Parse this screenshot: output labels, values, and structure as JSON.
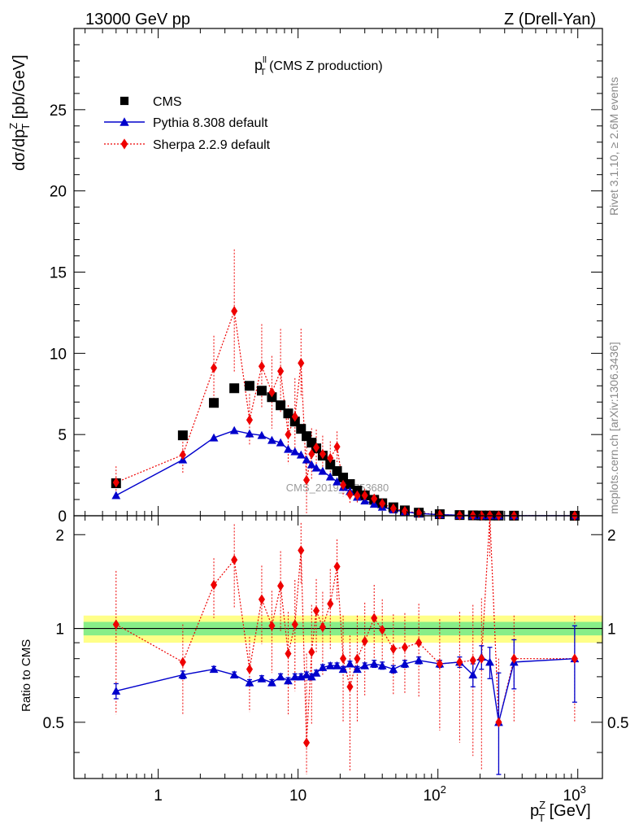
{
  "header": {
    "left": "13000 GeV pp",
    "right": "Z (Drell-Yan)"
  },
  "side_labels": {
    "rivet": "Rivet 3.1.10, ≥ 2.6M events",
    "mcplots": "mcplots.cern.ch [arXiv:1306.3436]"
  },
  "watermark": "CMS_2019_I1753680",
  "plot_title": {
    "main": "p",
    "sup": "ll",
    "sub": "T",
    "rest": " (CMS Z production)"
  },
  "axis_labels": {
    "ylabel_top": "dσ/dp",
    "ylabel_top_sup": "Z",
    "ylabel_top_sub": "T",
    "ylabel_top_rest": " [pb/GeV]",
    "ylabel_bottom": "Ratio to CMS",
    "xlabel": "p",
    "xlabel_sup": "Z",
    "xlabel_sub": "T",
    "xlabel_rest": " [GeV]"
  },
  "legend": [
    {
      "label": "CMS",
      "color": "#000000",
      "marker": "square",
      "line": "none"
    },
    {
      "label": "Pythia 8.308 default",
      "color": "#0000cc",
      "marker": "triangle",
      "line": "solid"
    },
    {
      "label": "Sherpa 2.2.9 default",
      "color": "#ee0000",
      "marker": "diamond",
      "line": "dotted"
    }
  ],
  "chart_data": {
    "type": "scatter",
    "x_scale": "log",
    "xlim": [
      0.25,
      1500
    ],
    "top_panel": {
      "ylim": [
        0,
        30
      ],
      "yticks": [
        0,
        5,
        10,
        15,
        20,
        25
      ],
      "ytick_labels": [
        "0",
        "5",
        "10",
        "15",
        "20",
        "25"
      ]
    },
    "ratio_panel": {
      "ylim": [
        0.33,
        2.3
      ],
      "yticks": [
        0.5,
        1,
        2
      ],
      "ytick_labels": [
        "0.5",
        "1",
        "2"
      ]
    },
    "xtick_labels": [
      {
        "value": 1,
        "base": "1",
        "exp": ""
      },
      {
        "value": 10,
        "base": "10",
        "exp": ""
      },
      {
        "value": 100,
        "base": "10",
        "exp": "2"
      },
      {
        "value": 1000,
        "base": "10",
        "exp": "3"
      }
    ],
    "x": [
      0.5,
      1.5,
      2.5,
      3.5,
      4.5,
      5.5,
      6.5,
      7.5,
      8.5,
      9.5,
      10.5,
      11.5,
      12.5,
      13.5,
      15,
      17,
      19,
      21,
      23.5,
      26.5,
      30,
      35,
      40,
      48,
      58,
      73,
      103,
      143,
      178,
      205,
      235,
      272,
      350,
      950
    ],
    "series": [
      {
        "name": "CMS",
        "color": "#000000",
        "values": [
          2.0,
          4.95,
          6.95,
          7.85,
          8.0,
          7.7,
          7.3,
          6.8,
          6.3,
          5.8,
          5.35,
          4.9,
          4.5,
          4.15,
          3.7,
          3.15,
          2.75,
          2.35,
          1.95,
          1.55,
          1.25,
          0.98,
          0.77,
          0.52,
          0.33,
          0.19,
          0.095,
          0.042,
          0.025,
          0.018,
          0.014,
          0.011,
          0.006,
          0.001
        ],
        "band_1sigma": 0.05,
        "band_2sigma": 0.1
      },
      {
        "name": "Pythia 8.308 default",
        "color": "#0000cc",
        "values": [
          1.25,
          3.45,
          4.8,
          5.25,
          5.05,
          4.95,
          4.65,
          4.5,
          4.1,
          3.95,
          3.75,
          3.45,
          3.15,
          2.95,
          2.75,
          2.4,
          2.1,
          1.75,
          1.5,
          1.15,
          0.92,
          0.72,
          0.54,
          0.37,
          0.24,
          0.14,
          0.067,
          0.032,
          0.018,
          0.014,
          0.011,
          0.006,
          0.004,
          0.001
        ],
        "ratio": [
          0.63,
          0.71,
          0.74,
          0.71,
          0.67,
          0.69,
          0.67,
          0.7,
          0.68,
          0.7,
          0.7,
          0.71,
          0.7,
          0.72,
          0.75,
          0.76,
          0.76,
          0.74,
          0.77,
          0.74,
          0.76,
          0.77,
          0.76,
          0.74,
          0.77,
          0.79,
          0.77,
          0.78,
          0.71,
          0.81,
          0.78,
          0.5,
          0.78,
          0.8
        ],
        "ratio_err": [
          0.035,
          0.02,
          0.015,
          0.015,
          0.015,
          0.015,
          0.015,
          0.015,
          0.015,
          0.015,
          0.015,
          0.015,
          0.015,
          0.015,
          0.015,
          0.015,
          0.015,
          0.015,
          0.015,
          0.015,
          0.015,
          0.02,
          0.02,
          0.02,
          0.02,
          0.02,
          0.02,
          0.03,
          0.06,
          0.07,
          0.09,
          0.22,
          0.14,
          0.22
        ]
      },
      {
        "name": "Sherpa 2.2.9 default",
        "color": "#ee0000",
        "values": [
          2.05,
          3.75,
          9.1,
          12.6,
          5.9,
          9.2,
          7.6,
          8.9,
          5.0,
          6.1,
          9.4,
          2.2,
          3.8,
          4.2,
          3.8,
          3.55,
          4.25,
          1.9,
          1.3,
          1.25,
          1.25,
          1.05,
          0.75,
          0.45,
          0.29,
          0.17,
          0.075,
          0.033,
          0.02,
          0.015,
          0.033,
          0.011,
          0.006,
          0.001
        ],
        "ratio": [
          1.03,
          0.78,
          1.38,
          1.66,
          0.74,
          1.24,
          1.02,
          1.37,
          0.83,
          1.03,
          1.78,
          0.43,
          0.84,
          1.14,
          1.01,
          1.2,
          1.58,
          0.8,
          0.65,
          0.8,
          0.91,
          1.08,
          0.99,
          0.86,
          0.87,
          0.9,
          0.77,
          0.78,
          0.79,
          0.8,
          2.3,
          0.5,
          0.8,
          0.8
        ],
        "ratio_err": [
          0.5,
          0.25,
          0.3,
          0.5,
          0.2,
          0.35,
          0.3,
          0.4,
          0.3,
          0.4,
          0.4,
          0.4,
          0.35,
          0.3,
          0.3,
          0.35,
          0.35,
          0.3,
          0.3,
          0.3,
          0.3,
          0.3,
          0.25,
          0.25,
          0.25,
          0.3,
          0.3,
          0.35,
          0.4,
          0.45,
          0.6,
          0.3,
          0.3,
          0.3
        ]
      }
    ]
  }
}
